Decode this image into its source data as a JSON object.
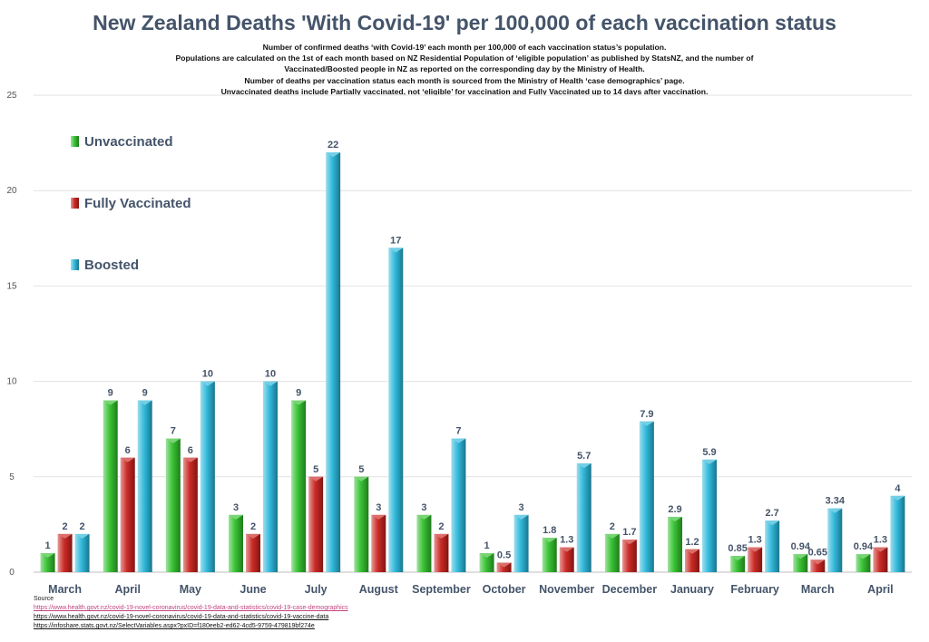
{
  "chart_data": {
    "type": "bar",
    "title": "New Zealand Deaths 'With Covid-19' per 100,000 of each vaccination status",
    "subtitle_lines": [
      "Number of confirmed deaths ‘with Covid-19’ each month per 100,000 of each vaccination status’s population.",
      "Populations are calculated on the 1st of each month based on NZ Residential Population of ‘eligible population’ as published by StatsNZ, and the number of",
      "Vaccinated/Boosted people in NZ as reported on the corresponding day by the Ministry of Health.",
      "Number of deaths per vaccination status each month is sourced from the Ministry of Health ‘case demographics’ page.",
      "Unvaccinated deaths include Partially vaccinated, not ‘eligible’ for vaccination and Fully Vaccinated up to 14 days after vaccination."
    ],
    "categories": [
      "March",
      "April",
      "May",
      "June",
      "July",
      "August",
      "September",
      "October",
      "November",
      "December",
      "January",
      "February",
      "March",
      "April"
    ],
    "series": [
      {
        "name": "Unvaccinated",
        "color": "#2fbf2a",
        "values": [
          1,
          9,
          7,
          3,
          9,
          5,
          3,
          1,
          1.8,
          2,
          2.9,
          0.85,
          0.94,
          0.94
        ],
        "labels": [
          "1",
          "9",
          "7",
          "3",
          "9",
          "5",
          "3",
          "1",
          "1.8",
          "2",
          "2.9",
          "0.85",
          "0.94",
          "0.94"
        ]
      },
      {
        "name": "Fully Vaccinated",
        "color": "#c8201c",
        "values": [
          2,
          6,
          6,
          2,
          5,
          3,
          2,
          0.5,
          1.3,
          1.7,
          1.2,
          1.3,
          0.65,
          1.3
        ],
        "labels": [
          "2",
          "6",
          "6",
          "2",
          "5",
          "3",
          "2",
          "0.5",
          "1.3",
          "1.7",
          "1.2",
          "1.3",
          "0.65",
          "1.3"
        ]
      },
      {
        "name": "Boosted",
        "color": "#27b5d9",
        "values": [
          2,
          9,
          10,
          10,
          22,
          17,
          7,
          3,
          5.7,
          7.9,
          5.9,
          2.7,
          3.34,
          4
        ],
        "labels": [
          "2",
          "9",
          "10",
          "10",
          "22",
          "17",
          "7",
          "3",
          "5.7",
          "7.9",
          "5.9",
          "2.7",
          "3.34",
          "4"
        ]
      }
    ],
    "yticks": [
      0,
      5,
      10,
      15,
      20,
      25
    ],
    "ylim": [
      0,
      25
    ],
    "xlabel": "",
    "ylabel": "",
    "grid": true,
    "legend_position": "top-left"
  },
  "sources": {
    "heading": "Source",
    "links": [
      "https://www.health.govt.nz/covid-19-novel-coronavirus/covid-19-data-and-statistics/covid-19-case-demographics",
      "https://www.health.govt.nz/covid-19-novel-coronavirus/covid-19-data-and-statistics/covid-19-vaccine-data",
      "https://infoshare.stats.govt.nz/SelectVariables.aspx?pxID=f180eeb2-ed62-4cd5-9759-479819bf274e"
    ]
  }
}
